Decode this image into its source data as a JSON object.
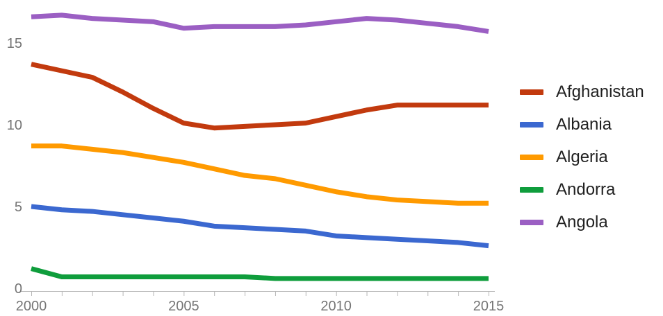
{
  "chart_data": {
    "type": "line",
    "title": "",
    "xlabel": "",
    "ylabel": "",
    "x": [
      2000,
      2001,
      2002,
      2003,
      2004,
      2005,
      2006,
      2007,
      2008,
      2009,
      2010,
      2011,
      2012,
      2013,
      2014,
      2015
    ],
    "series": [
      {
        "name": "Afghanistan",
        "color": "#c23a0e",
        "values": [
          13.7,
          13.3,
          12.9,
          12.0,
          11.0,
          10.1,
          9.8,
          9.9,
          10.0,
          10.1,
          10.5,
          10.9,
          11.2,
          11.2,
          11.2,
          11.2
        ]
      },
      {
        "name": "Albania",
        "color": "#3b68d0",
        "values": [
          5.0,
          4.8,
          4.7,
          4.5,
          4.3,
          4.1,
          3.8,
          3.7,
          3.6,
          3.5,
          3.2,
          3.1,
          3.0,
          2.9,
          2.8,
          2.6
        ]
      },
      {
        "name": "Algeria",
        "color": "#ff9a00",
        "values": [
          8.7,
          8.7,
          8.5,
          8.3,
          8.0,
          7.7,
          7.3,
          6.9,
          6.7,
          6.3,
          5.9,
          5.6,
          5.4,
          5.3,
          5.2,
          5.2
        ]
      },
      {
        "name": "Andorra",
        "color": "#0f9d3c",
        "values": [
          1.2,
          0.7,
          0.7,
          0.7,
          0.7,
          0.7,
          0.7,
          0.7,
          0.6,
          0.6,
          0.6,
          0.6,
          0.6,
          0.6,
          0.6,
          0.6
        ]
      },
      {
        "name": "Angola",
        "color": "#9b5fc3",
        "values": [
          16.6,
          16.7,
          16.5,
          16.4,
          16.3,
          15.9,
          16.0,
          16.0,
          16.0,
          16.1,
          16.3,
          16.5,
          16.4,
          16.2,
          16.0,
          15.7
        ]
      }
    ],
    "x_axis": {
      "min": 2000,
      "max": 2015,
      "tick_step": 1,
      "labeled_ticks": [
        2000,
        2005,
        2010,
        2015
      ]
    },
    "y_axis": {
      "ticks": [
        0,
        5,
        10,
        15
      ],
      "ylim": [
        0,
        17
      ]
    },
    "legend": {
      "position": "right",
      "entries": [
        "Afghanistan",
        "Albania",
        "Algeria",
        "Andorra",
        "Angola"
      ]
    },
    "grid": "none",
    "colors": {
      "axis_line": "#b6b6b6",
      "tick_label": "#757575",
      "legend_text": "#212121",
      "background": "#ffffff"
    }
  }
}
